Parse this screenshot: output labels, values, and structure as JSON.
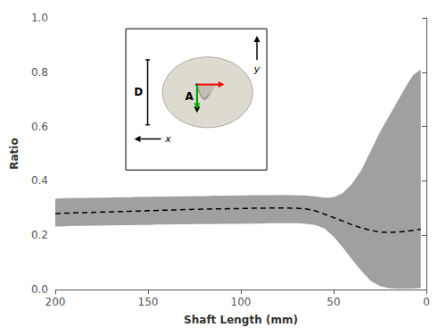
{
  "chart_data": {
    "type": "line",
    "x_label": "Shaft Length (mm)",
    "y_label": "Ratio",
    "x": [
      200,
      195,
      190,
      185,
      180,
      175,
      170,
      165,
      160,
      155,
      150,
      145,
      140,
      135,
      130,
      125,
      120,
      115,
      110,
      105,
      100,
      95,
      90,
      85,
      80,
      75,
      70,
      65,
      60,
      55,
      50,
      45,
      40,
      35,
      30,
      25,
      20,
      15,
      10,
      7,
      5,
      3
    ],
    "series": [
      {
        "type": "band",
        "color": "#808080",
        "upper": [
          0.335,
          0.336,
          0.337,
          0.337,
          0.338,
          0.338,
          0.339,
          0.34,
          0.34,
          0.341,
          0.341,
          0.342,
          0.342,
          0.343,
          0.343,
          0.344,
          0.344,
          0.345,
          0.345,
          0.346,
          0.346,
          0.347,
          0.347,
          0.347,
          0.348,
          0.348,
          0.347,
          0.346,
          0.343,
          0.338,
          0.34,
          0.355,
          0.39,
          0.44,
          0.51,
          0.58,
          0.64,
          0.7,
          0.76,
          0.79,
          0.8,
          0.81
        ],
        "lower": [
          0.232,
          0.233,
          0.234,
          0.234,
          0.235,
          0.235,
          0.236,
          0.237,
          0.237,
          0.238,
          0.238,
          0.239,
          0.239,
          0.24,
          0.24,
          0.241,
          0.241,
          0.241,
          0.242,
          0.242,
          0.242,
          0.243,
          0.243,
          0.244,
          0.244,
          0.244,
          0.244,
          0.242,
          0.238,
          0.225,
          0.195,
          0.155,
          0.11,
          0.068,
          0.032,
          0.012,
          0.005,
          0.003,
          0.003,
          0.004,
          0.005,
          0.006
        ]
      },
      {
        "type": "line",
        "color": "#000000",
        "line_style": "dashed",
        "values": [
          0.28,
          0.281,
          0.282,
          0.283,
          0.284,
          0.285,
          0.286,
          0.287,
          0.288,
          0.289,
          0.29,
          0.291,
          0.292,
          0.293,
          0.294,
          0.295,
          0.296,
          0.297,
          0.297,
          0.298,
          0.298,
          0.299,
          0.299,
          0.3,
          0.3,
          0.3,
          0.299,
          0.297,
          0.29,
          0.278,
          0.265,
          0.252,
          0.238,
          0.227,
          0.218,
          0.212,
          0.21,
          0.212,
          0.215,
          0.218,
          0.22,
          0.222
        ]
      }
    ],
    "xlim": [
      200,
      0
    ],
    "ylim": [
      0.0,
      1.0
    ],
    "xticks": [
      200,
      150,
      100,
      50,
      0
    ],
    "yticks": [
      {
        "value": 0.0,
        "label": "0.0"
      },
      0.2,
      0.4,
      0.6,
      0.8,
      {
        "value": 1.0,
        "label": "1.0"
      }
    ],
    "grid": false,
    "annotations": [
      "D",
      "A",
      "y",
      "x"
    ]
  }
}
